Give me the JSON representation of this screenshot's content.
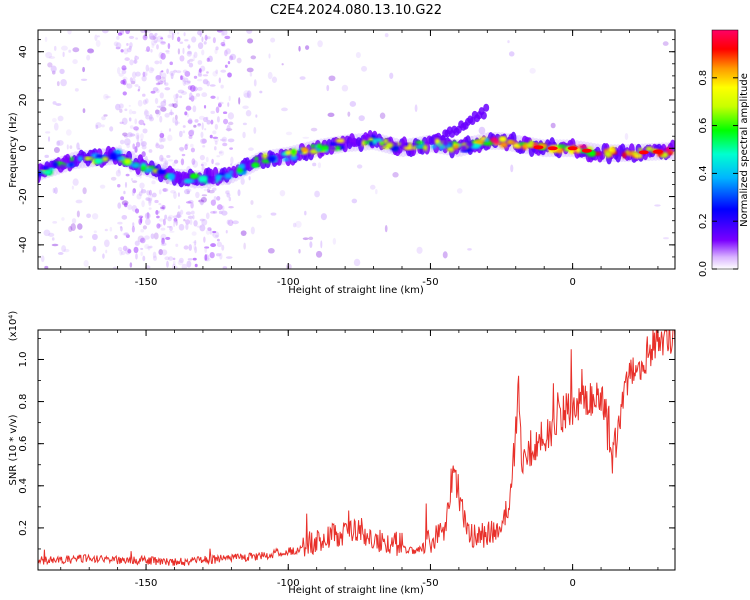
{
  "title": "C2E4.2024.080.13.10.G22",
  "chart_data": [
    {
      "type": "heatmap",
      "xlabel": "Height of straight line (km)",
      "ylabel": "Frequency (Hz)",
      "xlim": [
        -188,
        36
      ],
      "ylim": [
        -50,
        49
      ],
      "xticks": [
        -150,
        -100,
        -50,
        0
      ],
      "yticks": [
        -40,
        -20,
        0,
        20,
        40
      ],
      "colorbar": {
        "label": "Normalized spectral amplitude",
        "range": [
          0,
          1
        ],
        "ticks": [
          0.0,
          0.2,
          0.4,
          0.6,
          0.8
        ],
        "colors": [
          "#6a00ff",
          "#0000ff",
          "#00b4ff",
          "#00ffd0",
          "#00ff00",
          "#c8ff00",
          "#ffff00",
          "#ff9900",
          "#ff0000",
          "#ff0066"
        ]
      },
      "ridge": {
        "x": [
          -188,
          -175,
          -160,
          -150,
          -140,
          -130,
          -120,
          -110,
          -100,
          -90,
          -80,
          -70,
          -60,
          -50,
          -40,
          -30,
          -25,
          -20,
          -10,
          0,
          10,
          20,
          36
        ],
        "y": [
          -10,
          -5,
          -3,
          -8,
          -12,
          -13,
          -11,
          -5,
          -3,
          0,
          2,
          3,
          0,
          2,
          0,
          3,
          3,
          2,
          0,
          0,
          -2,
          -2,
          -1
        ]
      }
    },
    {
      "type": "line",
      "xlabel": "Height of straight line (km)",
      "ylabel": "SNR (10 * v/v)",
      "y_multiplier": "(x10⁴)",
      "xlim": [
        -188,
        36
      ],
      "ylim": [
        0,
        1.14
      ],
      "xticks": [
        -150,
        -100,
        -50,
        0
      ],
      "yticks": [
        0.2,
        0.4,
        0.6,
        0.8,
        1.0
      ],
      "series": [
        {
          "color": "#e8302a",
          "x": [
            -188,
            -180,
            -170,
            -160,
            -150,
            -140,
            -130,
            -120,
            -110,
            -100,
            -90,
            -80,
            -75,
            -70,
            -60,
            -55,
            -50,
            -45,
            -42,
            -38,
            -35,
            -30,
            -25,
            -22,
            -20,
            -19,
            -18,
            -15,
            -10,
            -5,
            0,
            5,
            10,
            14,
            20,
            25,
            30,
            36
          ],
          "y": [
            0.04,
            0.04,
            0.05,
            0.04,
            0.04,
            0.03,
            0.04,
            0.05,
            0.06,
            0.08,
            0.12,
            0.16,
            0.18,
            0.12,
            0.1,
            0.08,
            0.12,
            0.18,
            0.45,
            0.22,
            0.14,
            0.15,
            0.2,
            0.3,
            0.62,
            0.85,
            0.5,
            0.55,
            0.6,
            0.7,
            0.75,
            0.78,
            0.8,
            0.5,
            0.9,
            0.98,
            1.06,
            1.1
          ]
        }
      ]
    }
  ]
}
